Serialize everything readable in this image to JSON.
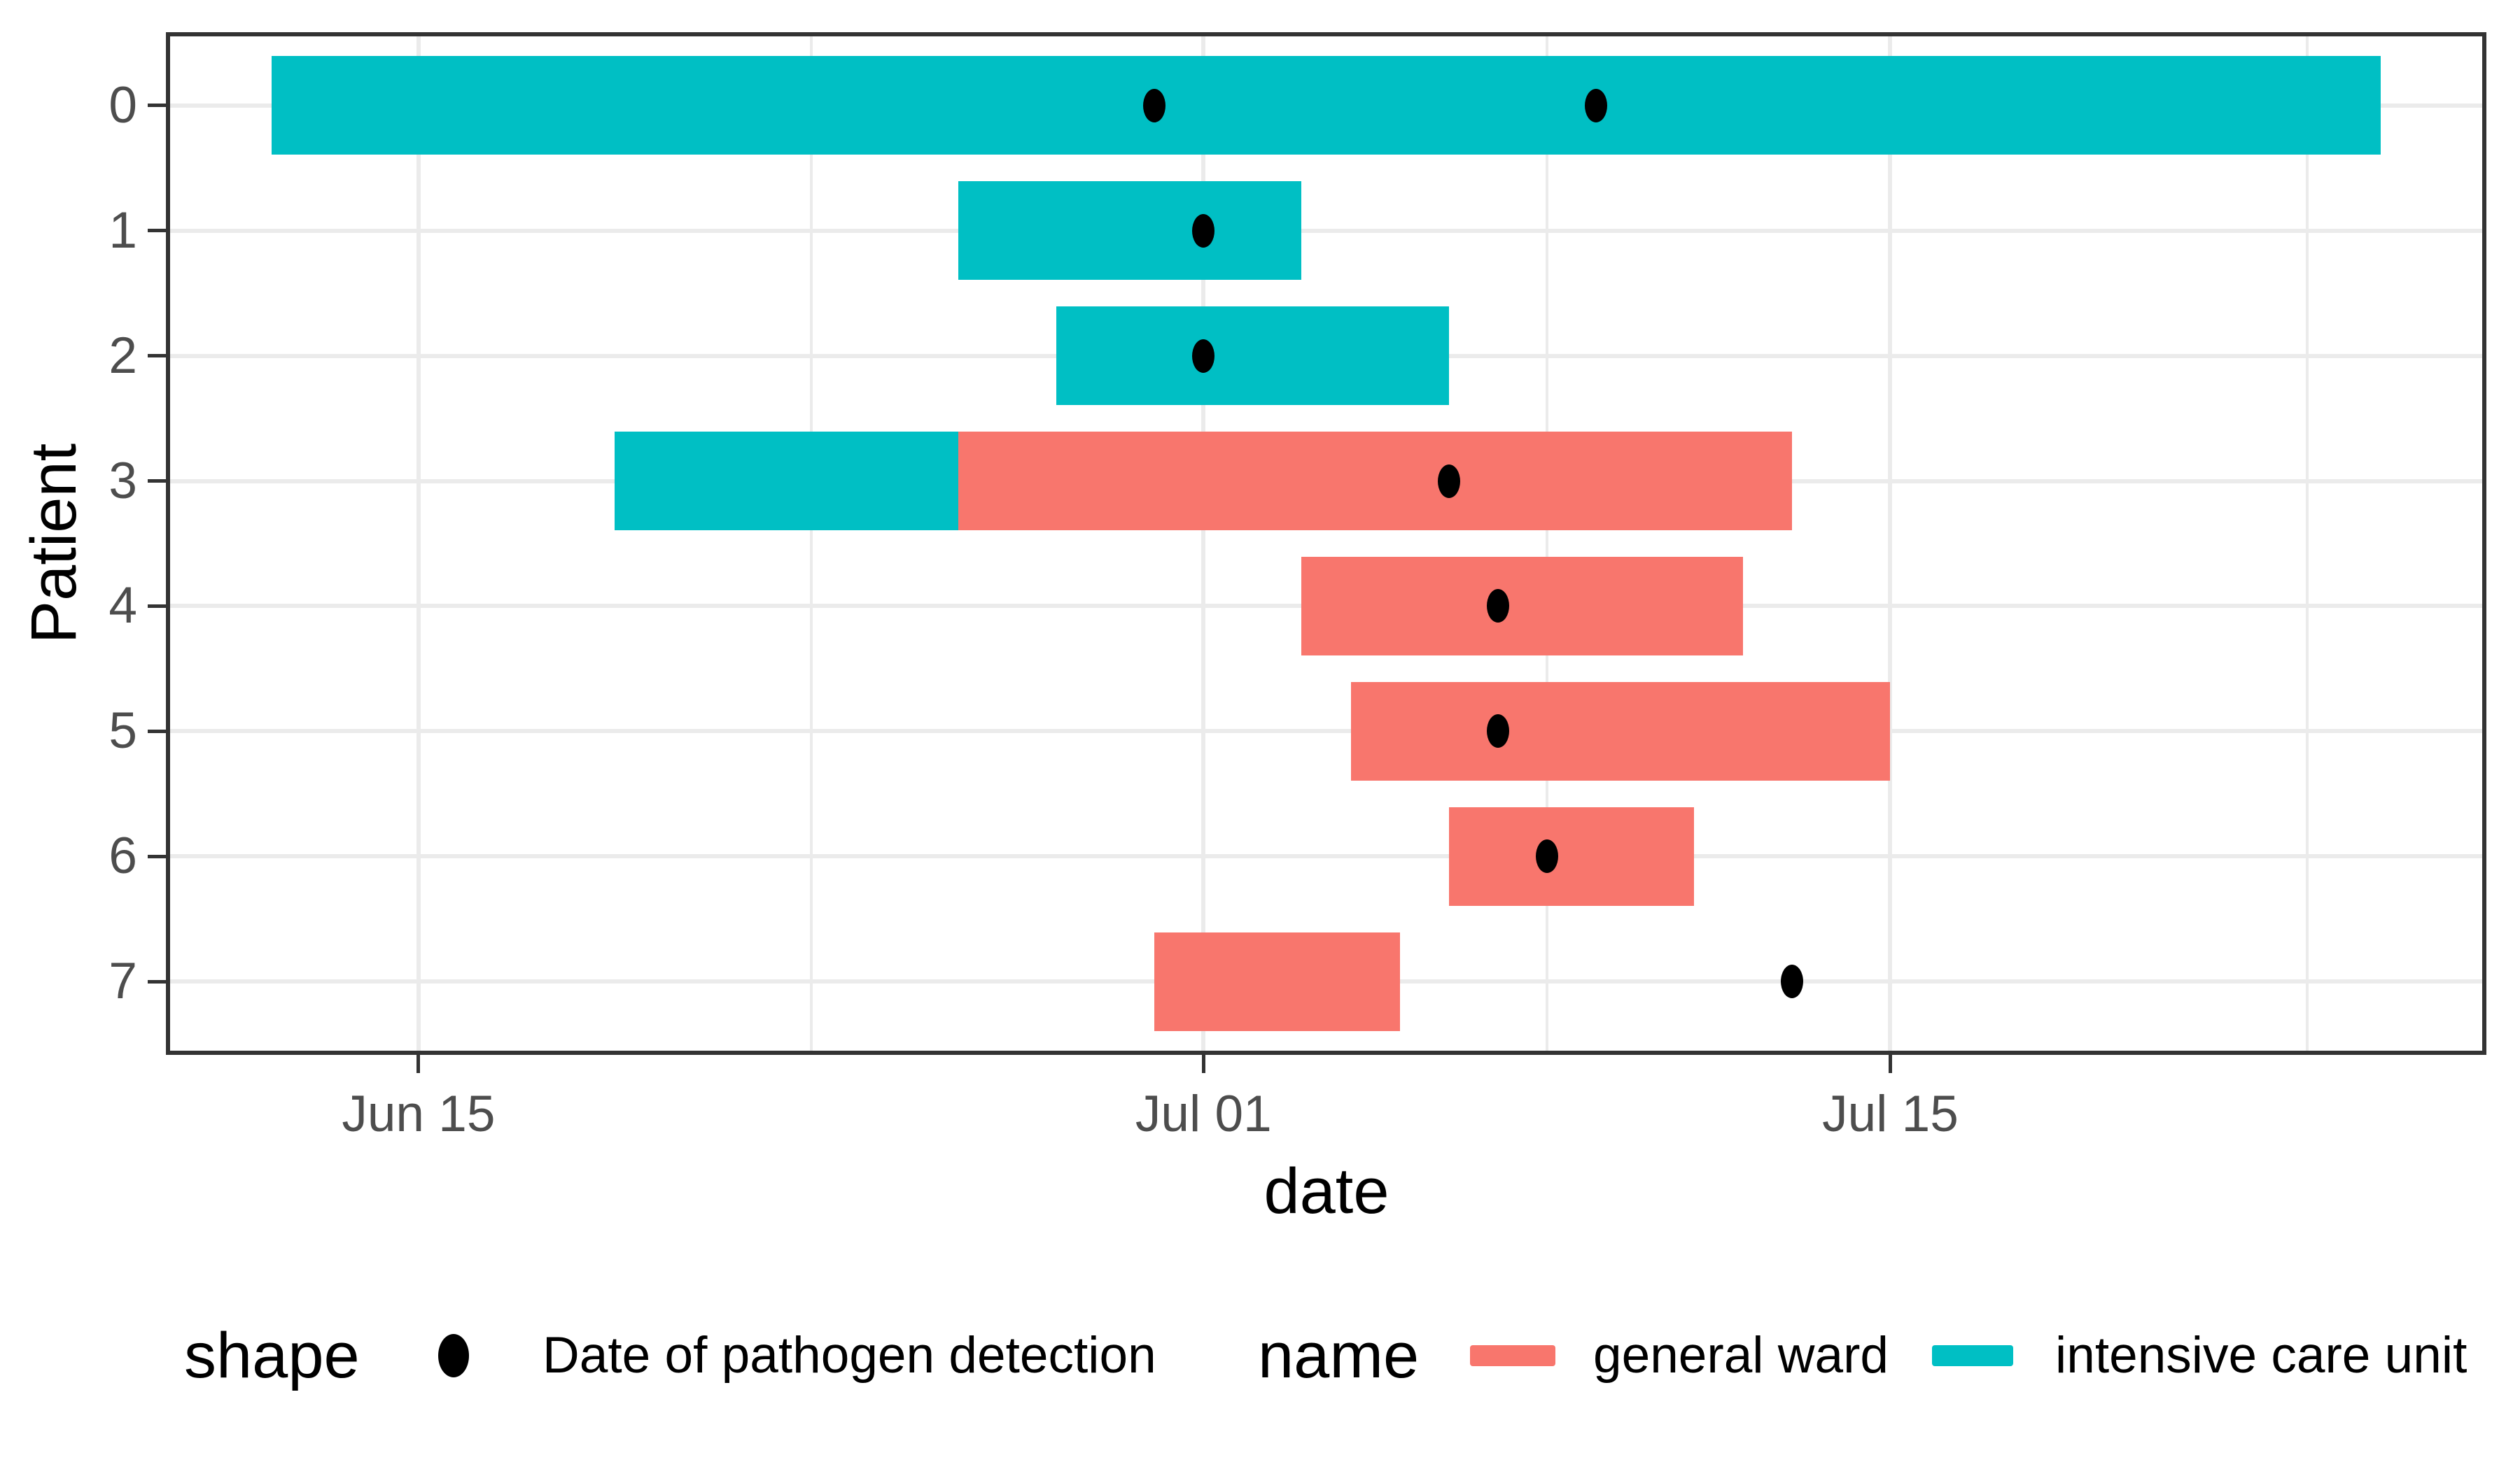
{
  "chart_data": {
    "type": "bar",
    "variant": "gantt-timeline",
    "title": "",
    "xlabel": "date",
    "ylabel": "Patient",
    "x_ticks": [
      "Jun 15",
      "Jul 01",
      "Jul 15"
    ],
    "y_ticks": [
      "0",
      "1",
      "2",
      "3",
      "4",
      "5",
      "6",
      "7"
    ],
    "series": [
      {
        "name": "general ward",
        "color": "#F8766D"
      },
      {
        "name": "intensive care unit",
        "color": "#00BFC4"
      }
    ],
    "patients": [
      {
        "patient": 0,
        "stays": [
          {
            "ward": "intensive care unit",
            "start": "Jun 12",
            "end": "Jul 25"
          }
        ],
        "detections": [
          "Jun 30",
          "Jul 09"
        ]
      },
      {
        "patient": 1,
        "stays": [
          {
            "ward": "intensive care unit",
            "start": "Jun 26",
            "end": "Jul 03"
          }
        ],
        "detections": [
          "Jul 01"
        ]
      },
      {
        "patient": 2,
        "stays": [
          {
            "ward": "intensive care unit",
            "start": "Jun 28",
            "end": "Jul 06"
          }
        ],
        "detections": [
          "Jul 01"
        ]
      },
      {
        "patient": 3,
        "stays": [
          {
            "ward": "intensive care unit",
            "start": "Jun 19",
            "end": "Jun 26"
          },
          {
            "ward": "general ward",
            "start": "Jun 26",
            "end": "Jul 13"
          }
        ],
        "detections": [
          "Jul 06"
        ]
      },
      {
        "patient": 4,
        "stays": [
          {
            "ward": "general ward",
            "start": "Jul 03",
            "end": "Jul 12"
          }
        ],
        "detections": [
          "Jul 07"
        ]
      },
      {
        "patient": 5,
        "stays": [
          {
            "ward": "general ward",
            "start": "Jul 04",
            "end": "Jul 15"
          }
        ],
        "detections": [
          "Jul 07"
        ]
      },
      {
        "patient": 6,
        "stays": [
          {
            "ward": "general ward",
            "start": "Jul 06",
            "end": "Jul 11"
          }
        ],
        "detections": [
          "Jul 08"
        ]
      },
      {
        "patient": 7,
        "stays": [
          {
            "ward": "general ward",
            "start": "Jun 30",
            "end": "Jul 05"
          }
        ],
        "detections": [
          "Jul 13"
        ]
      }
    ],
    "layout": {
      "x_expand_frac": 0.05,
      "x_minor_days": [
        23,
        38,
        53.5
      ],
      "y_expand_units": 0.585,
      "grid": true,
      "legend_position": "bottom"
    },
    "style_colors": {
      "grid": "#EBEBEB",
      "panel_border": "#333333",
      "tick_text": "#4D4D4D",
      "detection_point": "#000000"
    }
  },
  "legend": {
    "shape_title": "shape",
    "shape_item_label": "Date of pathogen detection",
    "name_title": "name",
    "items": [
      {
        "label": "general ward",
        "color": "#F8766D"
      },
      {
        "label": "intensive care unit",
        "color": "#00BFC4"
      }
    ]
  }
}
